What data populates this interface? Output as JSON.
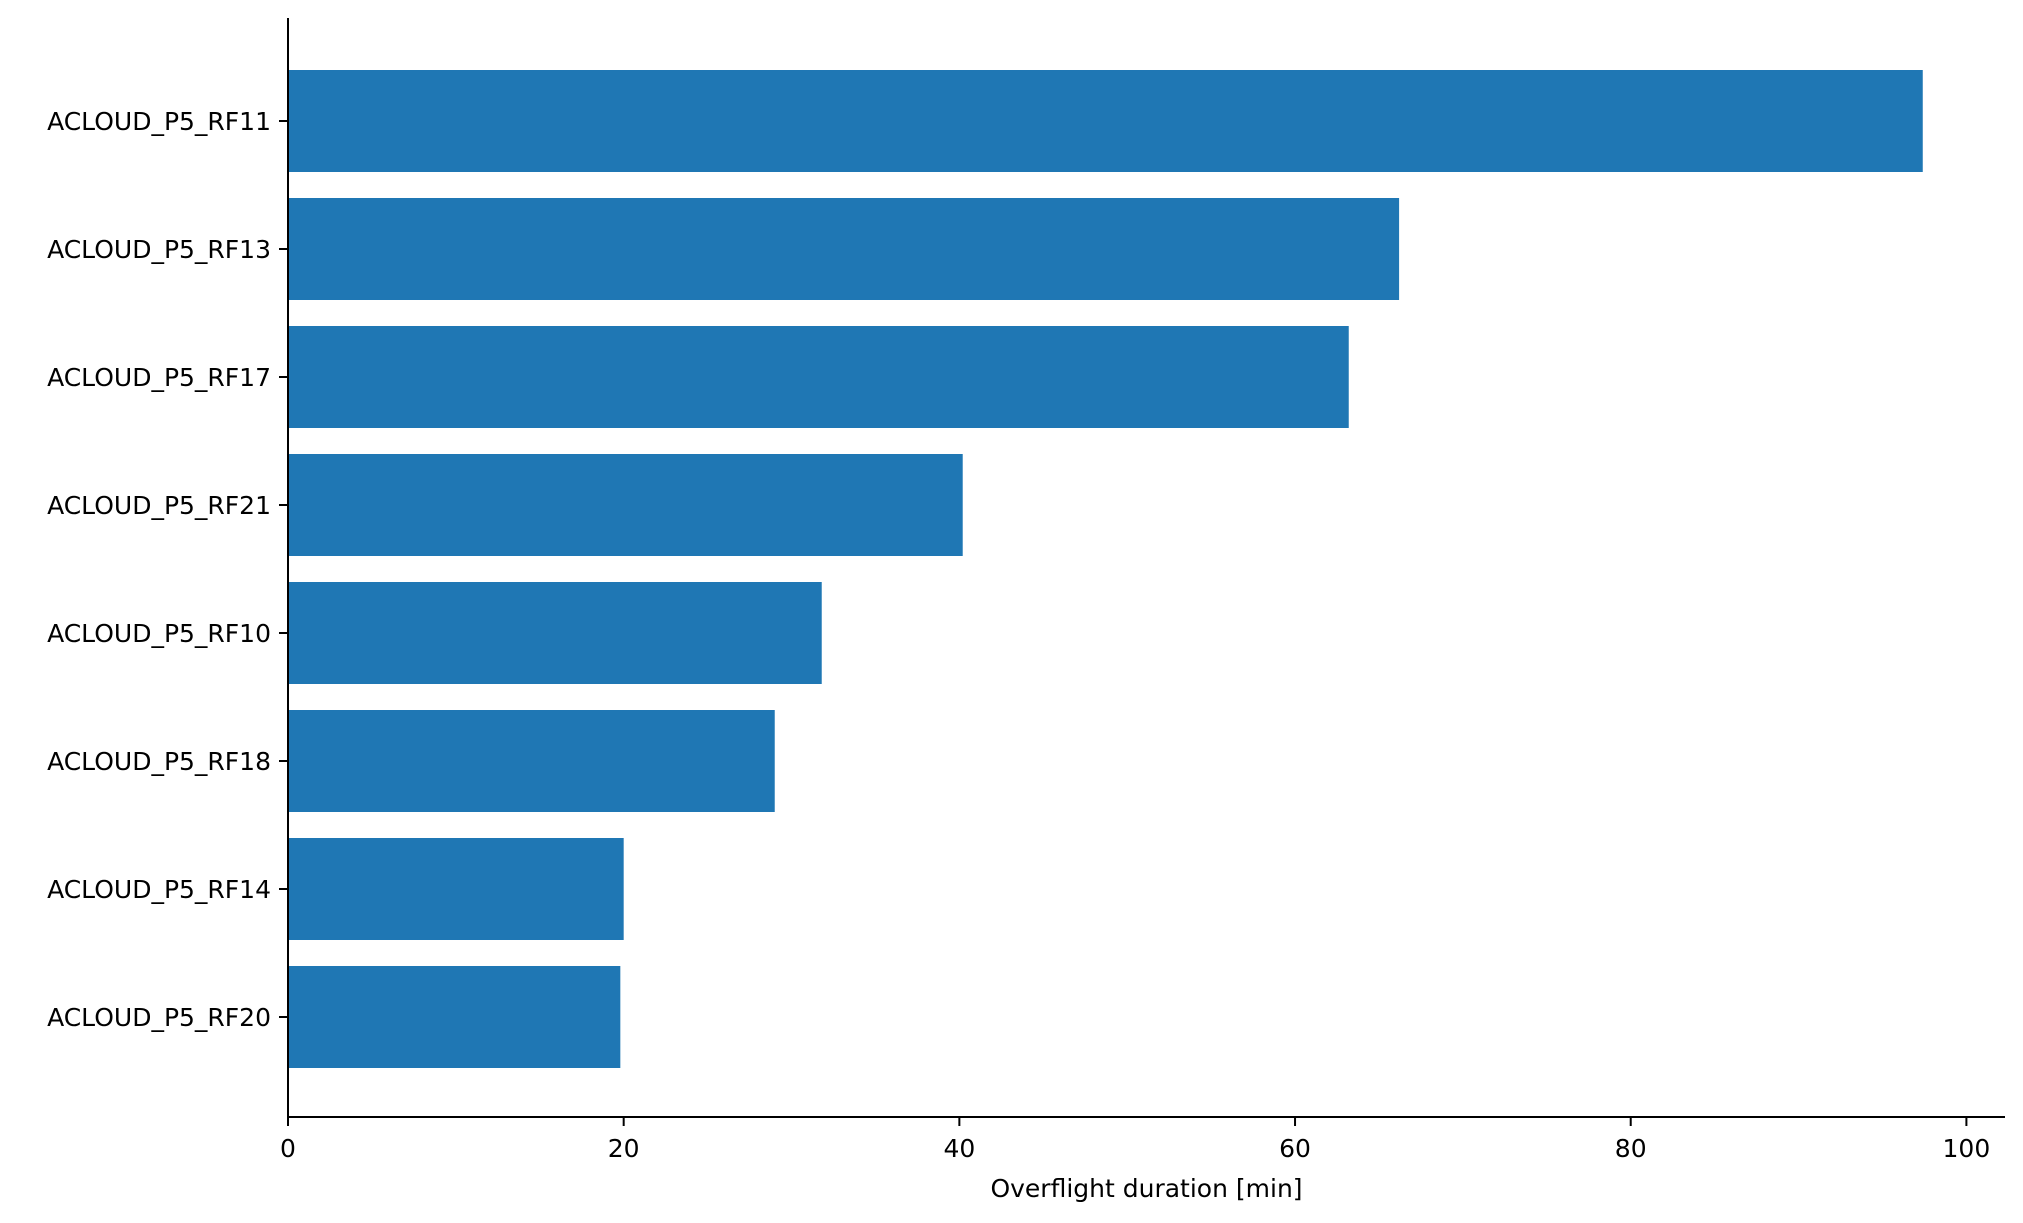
{
  "chart_data": {
    "type": "bar",
    "orientation": "horizontal",
    "categories": [
      "ACLOUD_P5_RF11",
      "ACLOUD_P5_RF13",
      "ACLOUD_P5_RF17",
      "ACLOUD_P5_RF21",
      "ACLOUD_P5_RF10",
      "ACLOUD_P5_RF18",
      "ACLOUD_P5_RF14",
      "ACLOUD_P5_RF20"
    ],
    "values": [
      97.4,
      66.2,
      63.2,
      40.2,
      31.8,
      29.0,
      20.0,
      19.8
    ],
    "title": "",
    "xlabel": "Overflight duration [min]",
    "ylabel": "",
    "xlim": [
      0,
      102.3
    ],
    "xticks": [
      0,
      20,
      40,
      60,
      80,
      100
    ],
    "xtick_labels": [
      "0",
      "20",
      "40",
      "60",
      "80",
      "100"
    ],
    "grid": false,
    "legend": "none",
    "bar_color": "#1f77b4",
    "axis_color": "#000000"
  }
}
